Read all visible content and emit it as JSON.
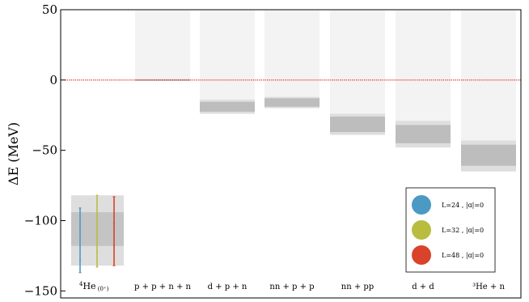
{
  "chart_data": {
    "type": "bar",
    "ylabel": "ΔE  (MeV)",
    "ylim": [
      -155,
      50
    ],
    "yticks": [
      50,
      0,
      -50,
      -100,
      -150
    ],
    "ytick_labels": [
      "50",
      "0",
      "−50",
      "−100",
      "−150"
    ],
    "reference_line": {
      "y": 0,
      "color": "#e02020",
      "style": "dotted"
    },
    "categories": [
      {
        "label_main": "4He",
        "label_sup": "4",
        "label_sub": "(0⁺)",
        "label": "⁴He (0⁺)"
      },
      {
        "label": "p + p + n + n"
      },
      {
        "label": "d + p + n"
      },
      {
        "label": "nn + p + p"
      },
      {
        "label": "nn + pp"
      },
      {
        "label": "d + d"
      },
      {
        "label": "³He + n"
      }
    ],
    "thresholds": [
      {
        "category": "p + p + n + n",
        "outer": [
          0,
          0
        ],
        "inner": [
          0,
          0
        ]
      },
      {
        "category": "d + p + n",
        "outer": [
          -24,
          -14
        ],
        "inner": [
          -22.5,
          -15.5
        ]
      },
      {
        "category": "nn + p + p",
        "outer": [
          -20,
          -12
        ],
        "inner": [
          -19,
          -13
        ]
      },
      {
        "category": "nn + pp",
        "outer": [
          -39,
          -24
        ],
        "inner": [
          -37,
          -26
        ]
      },
      {
        "category": "d + d",
        "outer": [
          -48,
          -29
        ],
        "inner": [
          -45,
          -32
        ]
      },
      {
        "category": "³He + n",
        "outer": [
          -65,
          -43
        ],
        "inner": [
          -61,
          -46
        ]
      }
    ],
    "he4_band": {
      "outer": [
        -132,
        -82
      ],
      "inner": [
        -118,
        -94
      ]
    },
    "series": [
      {
        "name": "L=24 , |ɑ|=0",
        "color": "#4a9ac4",
        "errorbar": {
          "low": -137,
          "high": -91,
          "center": -108,
          "minor_low": -128,
          "minor_high": -104
        }
      },
      {
        "name": "L=32 , |ɑ|=0",
        "color": "#b8bd40",
        "errorbar": {
          "low": -133,
          "high": -82,
          "center": -110,
          "minor_low": -122,
          "minor_high": -96
        }
      },
      {
        "name": "L=48 , |ɑ|=0",
        "color": "#d9432b",
        "errorbar": {
          "low": -132,
          "high": -83,
          "center": -112,
          "minor_low": -118,
          "minor_high": -102
        }
      }
    ],
    "legend": {
      "placement": "lower-right"
    },
    "grid": false
  }
}
